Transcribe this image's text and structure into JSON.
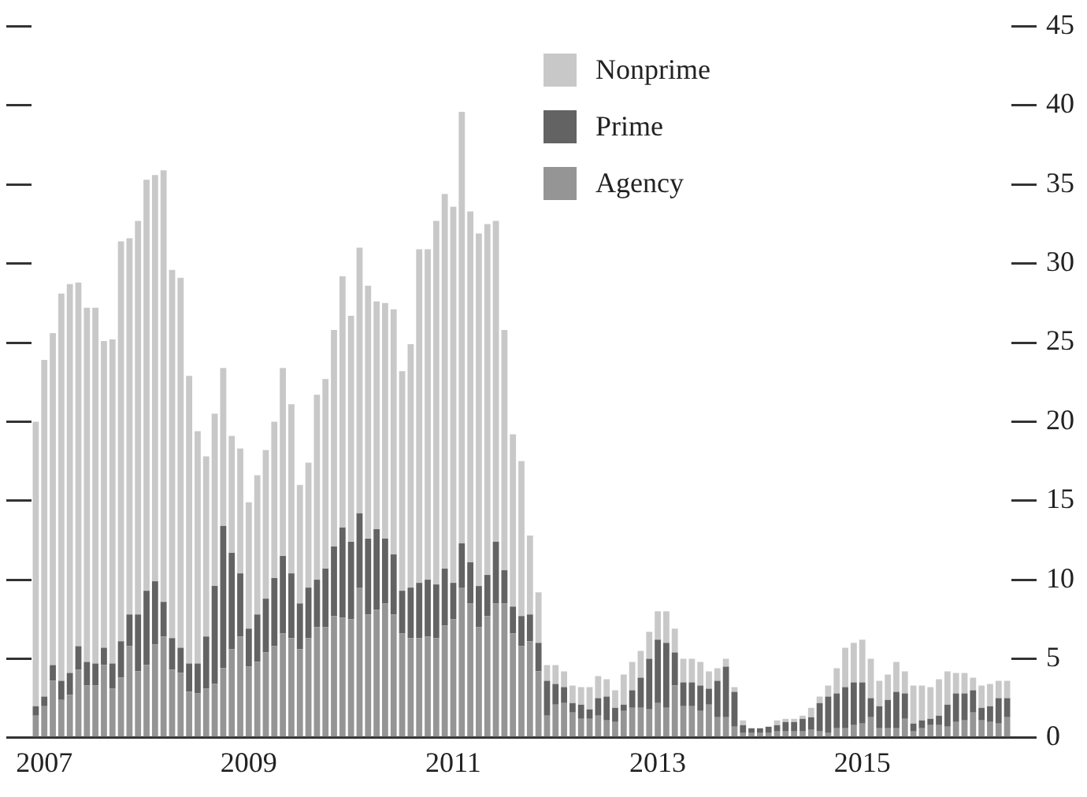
{
  "chart_data": {
    "type": "bar",
    "stacked": true,
    "grid": false,
    "legend": "top",
    "categories": [
      null,
      "2007",
      null,
      null,
      null,
      null,
      null,
      null,
      null,
      null,
      null,
      null,
      null,
      null,
      null,
      null,
      null,
      null,
      null,
      null,
      null,
      null,
      null,
      null,
      null,
      "2009",
      null,
      null,
      null,
      null,
      null,
      null,
      null,
      null,
      null,
      null,
      null,
      null,
      null,
      null,
      null,
      null,
      null,
      null,
      null,
      null,
      null,
      null,
      null,
      "2011",
      null,
      null,
      null,
      null,
      null,
      null,
      null,
      null,
      null,
      null,
      null,
      null,
      null,
      null,
      null,
      null,
      null,
      null,
      null,
      null,
      null,
      null,
      null,
      "2013",
      null,
      null,
      null,
      null,
      null,
      null,
      null,
      null,
      null,
      null,
      null,
      null,
      null,
      null,
      null,
      null,
      null,
      null,
      null,
      null,
      null,
      null,
      null,
      "2015",
      null,
      null,
      null,
      null,
      null,
      null,
      null,
      null,
      null,
      null,
      null,
      null,
      null,
      null,
      null,
      null,
      null
    ],
    "ylim": [
      0,
      45
    ],
    "yticks": [
      0,
      5,
      10,
      15,
      20,
      25,
      30,
      35,
      40,
      45
    ],
    "series": [
      {
        "name": "Agency",
        "color": "#959595",
        "values": [
          1.4,
          2.0,
          3.6,
          2.4,
          2.7,
          4.3,
          3.3,
          3.3,
          4.6,
          3.1,
          3.8,
          5.8,
          4.2,
          4.6,
          5.9,
          6.4,
          4.3,
          4.1,
          2.9,
          2.8,
          3.1,
          3.4,
          4.4,
          5.6,
          6.4,
          4.5,
          4.8,
          5.4,
          5.8,
          6.6,
          6.3,
          5.6,
          6.3,
          7.0,
          7.0,
          7.7,
          7.6,
          7.5,
          9.5,
          7.8,
          8.1,
          8.5,
          7.8,
          6.6,
          6.3,
          6.3,
          6.4,
          6.3,
          7.1,
          7.5,
          9.5,
          8.5,
          7.0,
          7.7,
          8.5,
          8.5,
          6.6,
          5.8,
          6.1,
          4.2,
          1.4,
          2.1,
          2.2,
          1.6,
          1.2,
          1.2,
          1.4,
          1.1,
          1.0,
          1.7,
          1.9,
          1.9,
          1.8,
          2.2,
          1.9,
          3.3,
          2.0,
          2.0,
          1.7,
          2.1,
          1.3,
          1.3,
          0.7,
          0.3,
          0.3,
          0.3,
          0.3,
          0.4,
          0.4,
          0.4,
          0.4,
          0.5,
          0.4,
          0.3,
          0.6,
          0.6,
          0.8,
          0.9,
          1.3,
          0.6,
          0.6,
          0.6,
          1.2,
          0.4,
          0.6,
          0.8,
          0.8,
          0.7,
          1.0,
          1.1,
          1.6,
          1.1,
          1.0,
          0.9,
          1.3
        ]
      },
      {
        "name": "Prime",
        "color": "#636363",
        "values": [
          0.6,
          0.6,
          1.0,
          1.2,
          1.4,
          1.5,
          1.5,
          1.4,
          1.1,
          1.6,
          2.3,
          2.0,
          3.6,
          4.7,
          4.0,
          2.2,
          2.0,
          1.6,
          1.8,
          1.9,
          3.3,
          6.2,
          9.0,
          6.1,
          4.0,
          2.4,
          3.0,
          3.4,
          4.3,
          4.9,
          4.1,
          2.9,
          3.2,
          3.0,
          3.7,
          4.4,
          5.7,
          4.9,
          4.7,
          4.8,
          5.1,
          4.1,
          3.8,
          2.7,
          3.2,
          3.5,
          3.6,
          3.4,
          3.6,
          2.3,
          2.8,
          2.6,
          2.6,
          2.6,
          3.9,
          2.1,
          1.7,
          1.9,
          1.7,
          1.8,
          2.2,
          1.3,
          1.0,
          0.6,
          0.9,
          0.6,
          1.1,
          1.5,
          0.9,
          0.4,
          1.1,
          1.9,
          3.2,
          4.0,
          4.1,
          2.1,
          1.5,
          1.5,
          1.6,
          1.0,
          2.3,
          3.2,
          2.2,
          0.5,
          0.3,
          0.3,
          0.4,
          0.4,
          0.6,
          0.6,
          0.8,
          0.8,
          1.8,
          2.3,
          2.2,
          2.6,
          2.7,
          2.6,
          1.2,
          1.4,
          1.8,
          2.3,
          1.6,
          0.5,
          0.5,
          0.4,
          0.6,
          1.4,
          1.8,
          1.7,
          1.4,
          0.8,
          1.0,
          1.6,
          1.2
        ]
      },
      {
        "name": "Nonprime",
        "color": "#c8c8c8",
        "values": [
          18.0,
          21.3,
          21.0,
          24.5,
          24.6,
          23.0,
          22.4,
          22.5,
          19.4,
          20.5,
          25.3,
          23.8,
          24.9,
          26.0,
          25.7,
          27.3,
          23.3,
          23.4,
          18.2,
          14.7,
          11.4,
          10.9,
          10.0,
          7.4,
          7.9,
          8.0,
          8.8,
          9.4,
          9.9,
          11.9,
          10.7,
          7.5,
          7.9,
          11.7,
          12.0,
          13.7,
          15.9,
          14.3,
          16.8,
          16.0,
          14.4,
          14.9,
          15.5,
          13.9,
          15.4,
          21.1,
          20.9,
          23.0,
          23.7,
          23.8,
          27.3,
          22.2,
          22.3,
          22.2,
          20.3,
          15.2,
          10.9,
          9.8,
          5.0,
          3.2,
          1.0,
          1.2,
          1.0,
          1.1,
          1.1,
          1.4,
          1.4,
          1.1,
          1.1,
          1.9,
          1.8,
          1.7,
          1.7,
          1.8,
          2.0,
          1.5,
          1.5,
          1.5,
          1.5,
          1.1,
          0.8,
          0.5,
          0.3,
          0.3,
          0,
          0,
          0,
          0.3,
          0.2,
          0.2,
          0.2,
          0.6,
          0.4,
          0.7,
          1.6,
          2.5,
          2.5,
          2.7,
          2.5,
          1.6,
          1.6,
          1.9,
          1.4,
          2.4,
          2.2,
          2.0,
          2.3,
          2.1,
          1.3,
          1.3,
          0.8,
          1.4,
          1.4,
          1.1,
          1.1
        ]
      }
    ]
  }
}
